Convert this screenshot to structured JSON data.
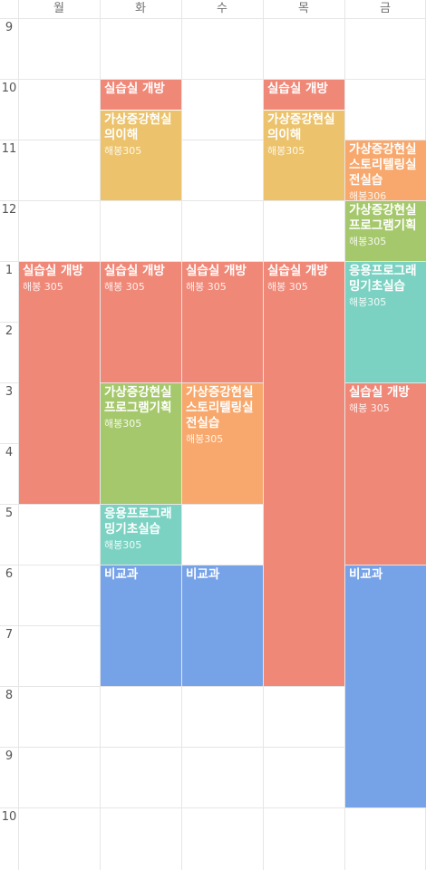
{
  "days": [
    "월",
    "화",
    "수",
    "목",
    "금"
  ],
  "hours": [
    "9",
    "10",
    "11",
    "12",
    "1",
    "2",
    "3",
    "4",
    "5",
    "6",
    "7",
    "8",
    "9",
    "10"
  ],
  "start_hour": 9,
  "colors": {
    "salmon": "#f08878",
    "mustard": "#ecc36c",
    "orange": "#f8a86c",
    "green": "#a6c86c",
    "teal": "#7cd2c2",
    "blue": "#76a2e8"
  },
  "events": [
    {
      "day": 0,
      "start": 13,
      "end": 17,
      "title": "실습실 개방",
      "location": "해봉 305",
      "color": "salmon"
    },
    {
      "day": 1,
      "start": 10,
      "end": 10.5,
      "title": "실습실 개방",
      "location": "",
      "color": "salmon"
    },
    {
      "day": 1,
      "start": 10.5,
      "end": 12,
      "title": "가상증강현실의이해",
      "location": "해봉305",
      "color": "mustard"
    },
    {
      "day": 1,
      "start": 13,
      "end": 15,
      "title": "실습실 개방",
      "location": "해봉 305",
      "color": "salmon"
    },
    {
      "day": 1,
      "start": 15,
      "end": 17,
      "title": "가상증강현실프로그램기획",
      "location": "해봉305",
      "color": "green"
    },
    {
      "day": 1,
      "start": 17,
      "end": 18,
      "title": "응용프로그래밍기초실습",
      "location": "해봉305",
      "color": "teal"
    },
    {
      "day": 1,
      "start": 18,
      "end": 20,
      "title": "비교과",
      "location": "",
      "color": "blue"
    },
    {
      "day": 2,
      "start": 13,
      "end": 15,
      "title": "실습실 개방",
      "location": "해봉 305",
      "color": "salmon"
    },
    {
      "day": 2,
      "start": 15,
      "end": 17,
      "title": "가상증강현실스토리텔링실전실습",
      "location": "해봉305",
      "color": "orange"
    },
    {
      "day": 2,
      "start": 18,
      "end": 20,
      "title": "비교과",
      "location": "",
      "color": "blue"
    },
    {
      "day": 3,
      "start": 10,
      "end": 10.5,
      "title": "실습실 개방",
      "location": "",
      "color": "salmon"
    },
    {
      "day": 3,
      "start": 10.5,
      "end": 12,
      "title": "가상증강현실의이해",
      "location": "해봉305",
      "color": "mustard"
    },
    {
      "day": 3,
      "start": 13,
      "end": 20,
      "title": "실습실 개방",
      "location": "해봉 305",
      "color": "salmon"
    },
    {
      "day": 4,
      "start": 11,
      "end": 12,
      "title": "가상증강현실스토리텔링실전실습",
      "location": "해봉306",
      "color": "orange"
    },
    {
      "day": 4,
      "start": 12,
      "end": 13,
      "title": "가상증강현실프로그램기획",
      "location": "해봉305",
      "color": "green"
    },
    {
      "day": 4,
      "start": 13,
      "end": 15,
      "title": "응용프로그래밍기초실습",
      "location": "해봉305",
      "color": "teal"
    },
    {
      "day": 4,
      "start": 15,
      "end": 18,
      "title": "실습실 개방",
      "location": "해봉 305",
      "color": "salmon"
    },
    {
      "day": 4,
      "start": 18,
      "end": 22,
      "title": "비교과",
      "location": "",
      "color": "blue"
    }
  ]
}
